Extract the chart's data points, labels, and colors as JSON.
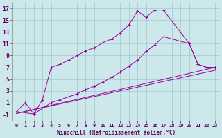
{
  "background_color": "#cde8ea",
  "line_color": "#990099",
  "grid_color": "#a0c8cc",
  "xlabel": "Windchill (Refroidissement éolien,°C)",
  "ylabel_ticks": [
    -1,
    1,
    3,
    5,
    7,
    9,
    11,
    13,
    15,
    17
  ],
  "xticks": [
    0,
    1,
    2,
    3,
    4,
    5,
    6,
    7,
    8,
    9,
    10,
    11,
    12,
    13,
    14,
    15,
    16,
    17,
    18,
    19,
    20,
    21,
    22,
    23
  ],
  "xlim": [
    -0.5,
    23.5
  ],
  "ylim": [
    -2,
    18
  ],
  "s1x": [
    0,
    1,
    2,
    3,
    4,
    5,
    6,
    7,
    8,
    9,
    10,
    11,
    12,
    13,
    14,
    15,
    16,
    17,
    20,
    21,
    22,
    23
  ],
  "s1y": [
    -0.5,
    1.0,
    -0.9,
    1.5,
    7.0,
    7.5,
    8.2,
    9.0,
    9.8,
    10.3,
    11.2,
    11.8,
    12.8,
    14.2,
    16.5,
    15.5,
    16.7,
    16.7,
    11.0,
    7.5,
    7.0,
    7.0
  ],
  "s2x": [
    0,
    2,
    4,
    5,
    6,
    7,
    8,
    9,
    10,
    11,
    12,
    13,
    14,
    15,
    16,
    17,
    20,
    21,
    22,
    23
  ],
  "s2y": [
    -0.5,
    -0.9,
    1.0,
    1.5,
    2.0,
    2.5,
    3.2,
    3.8,
    4.5,
    5.3,
    6.2,
    7.2,
    8.2,
    9.7,
    10.8,
    12.2,
    11.0,
    7.5,
    7.0,
    7.0
  ],
  "s3x": [
    0,
    23
  ],
  "s3y": [
    -0.8,
    7.0
  ],
  "s4x": [
    0,
    23
  ],
  "s4y": [
    -0.8,
    6.5
  ]
}
